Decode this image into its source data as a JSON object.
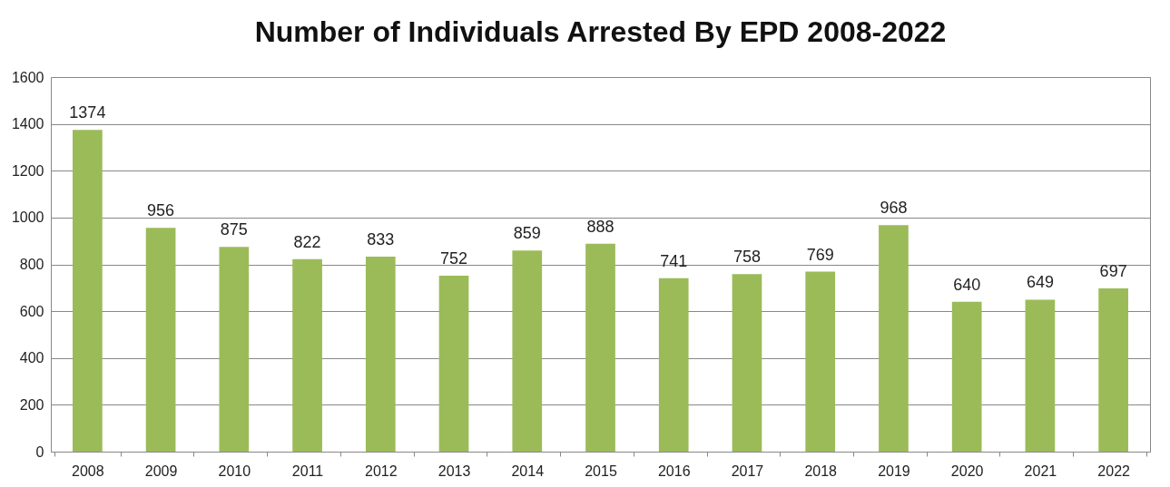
{
  "chart_data": {
    "type": "bar",
    "title": "Number of Individuals Arrested By EPD 2008-2022",
    "categories": [
      "2008",
      "2009",
      "2010",
      "2011",
      "2012",
      "2013",
      "2014",
      "2015",
      "2016",
      "2017",
      "2018",
      "2019",
      "2020",
      "2021",
      "2022"
    ],
    "values": [
      1374,
      956,
      875,
      822,
      833,
      752,
      859,
      888,
      741,
      758,
      769,
      968,
      640,
      649,
      697
    ],
    "color": "#9bbb59",
    "ylim": [
      0,
      1600
    ],
    "yticks": [
      0,
      200,
      400,
      600,
      800,
      1000,
      1200,
      1400,
      1600
    ],
    "grid": "y",
    "data_labels": true
  }
}
